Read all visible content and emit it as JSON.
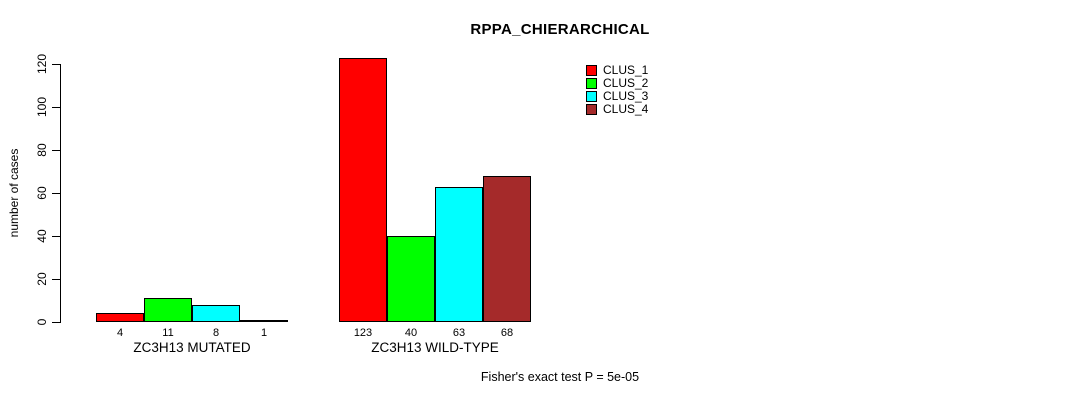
{
  "chart_data": {
    "type": "bar",
    "title": "RPPA_CHIERARCHICAL",
    "ylabel": "number of cases",
    "ylim": [
      0,
      120
    ],
    "yticks": [
      0,
      20,
      40,
      60,
      80,
      100,
      120
    ],
    "categories": [
      "ZC3H13 MUTATED",
      "ZC3H13 WILD-TYPE"
    ],
    "series": [
      {
        "name": "CLUS_1",
        "color": "#ff0000",
        "values": [
          4,
          123
        ]
      },
      {
        "name": "CLUS_2",
        "color": "#00ff00",
        "values": [
          11,
          40
        ]
      },
      {
        "name": "CLUS_3",
        "color": "#00ffff",
        "values": [
          8,
          63
        ]
      },
      {
        "name": "CLUS_4",
        "color": "#a52a2a",
        "values": [
          1,
          68
        ]
      }
    ],
    "bar_value_labels": [
      [
        "4",
        "11",
        "8",
        "1"
      ],
      [
        "123",
        "40",
        "63",
        "68"
      ]
    ],
    "legend_position": "top-right",
    "grid": false,
    "background": "#ffffff",
    "annotation": "Fisher's exact test P = 5e-05"
  }
}
